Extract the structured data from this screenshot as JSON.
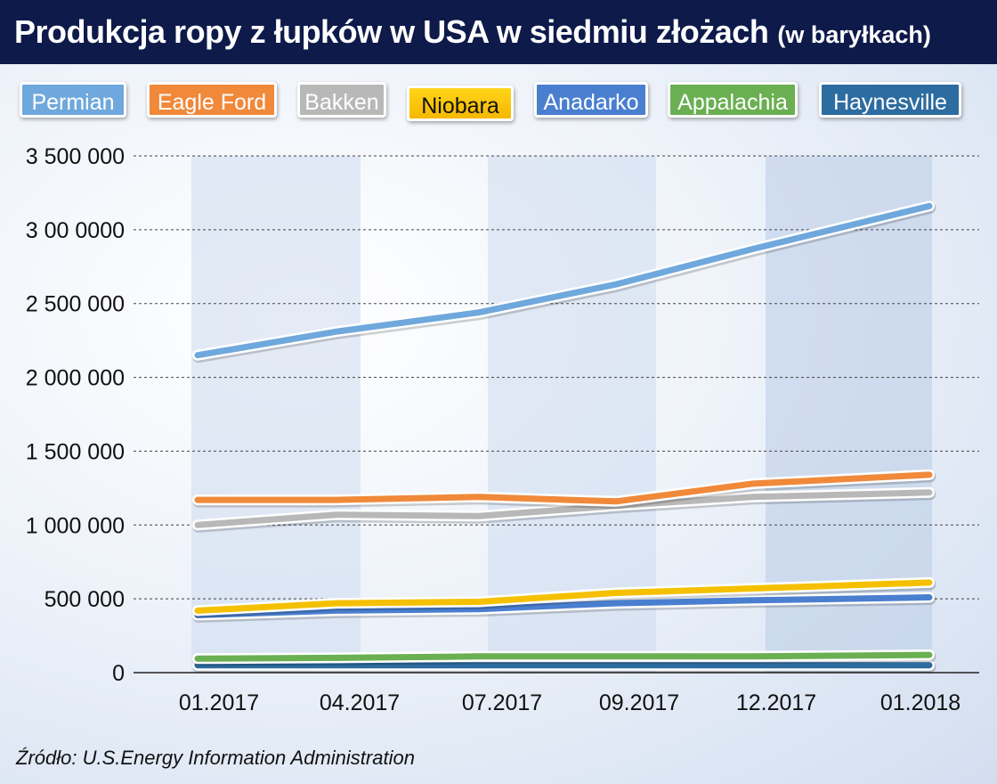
{
  "title": {
    "main": "Produkcja ropy z łupków w USA w siedmiu złożach",
    "sub": "(w baryłkach)"
  },
  "source": "Źródło: U.S.Energy Information Administration",
  "chart_data": {
    "type": "line",
    "categories": [
      "01.2017",
      "04.2017",
      "07.2017",
      "09.2017",
      "12.2017",
      "01.2018"
    ],
    "ylim": [
      0,
      3500000
    ],
    "y_ticks": [
      0,
      500000,
      1000000,
      1500000,
      2000000,
      2500000,
      3000000,
      3500000
    ],
    "y_tick_labels": [
      "0",
      "500 000",
      "1 000 000",
      "1 500 000",
      "2 000 000",
      "2 500 000",
      "3 00 0000",
      "3 500 000"
    ],
    "grid": "horizontal-dotted",
    "legend_position": "top",
    "series": [
      {
        "name": "Permian",
        "color": "#6fa8dc",
        "values": [
          2150000,
          2310000,
          2440000,
          2630000,
          2870000,
          3160000
        ]
      },
      {
        "name": "Eagle Ford",
        "color": "#f0893a",
        "values": [
          1170000,
          1170000,
          1190000,
          1160000,
          1280000,
          1340000
        ]
      },
      {
        "name": "Bakken",
        "color": "#b8b8b8",
        "values": [
          1000000,
          1070000,
          1060000,
          1130000,
          1190000,
          1220000
        ]
      },
      {
        "name": "Niobara",
        "color": "#f5c000",
        "values": [
          420000,
          470000,
          480000,
          540000,
          570000,
          610000
        ]
      },
      {
        "name": "Anadarko",
        "color": "#4a7fd0",
        "values": [
          390000,
          420000,
          430000,
          470000,
          490000,
          510000
        ]
      },
      {
        "name": "Appalachia",
        "color": "#6aaf52",
        "values": [
          95000,
          100000,
          110000,
          110000,
          110000,
          120000
        ]
      },
      {
        "name": "Haynesville",
        "color": "#2d6ca0",
        "values": [
          50000,
          50000,
          50000,
          50000,
          50000,
          50000
        ]
      }
    ]
  }
}
